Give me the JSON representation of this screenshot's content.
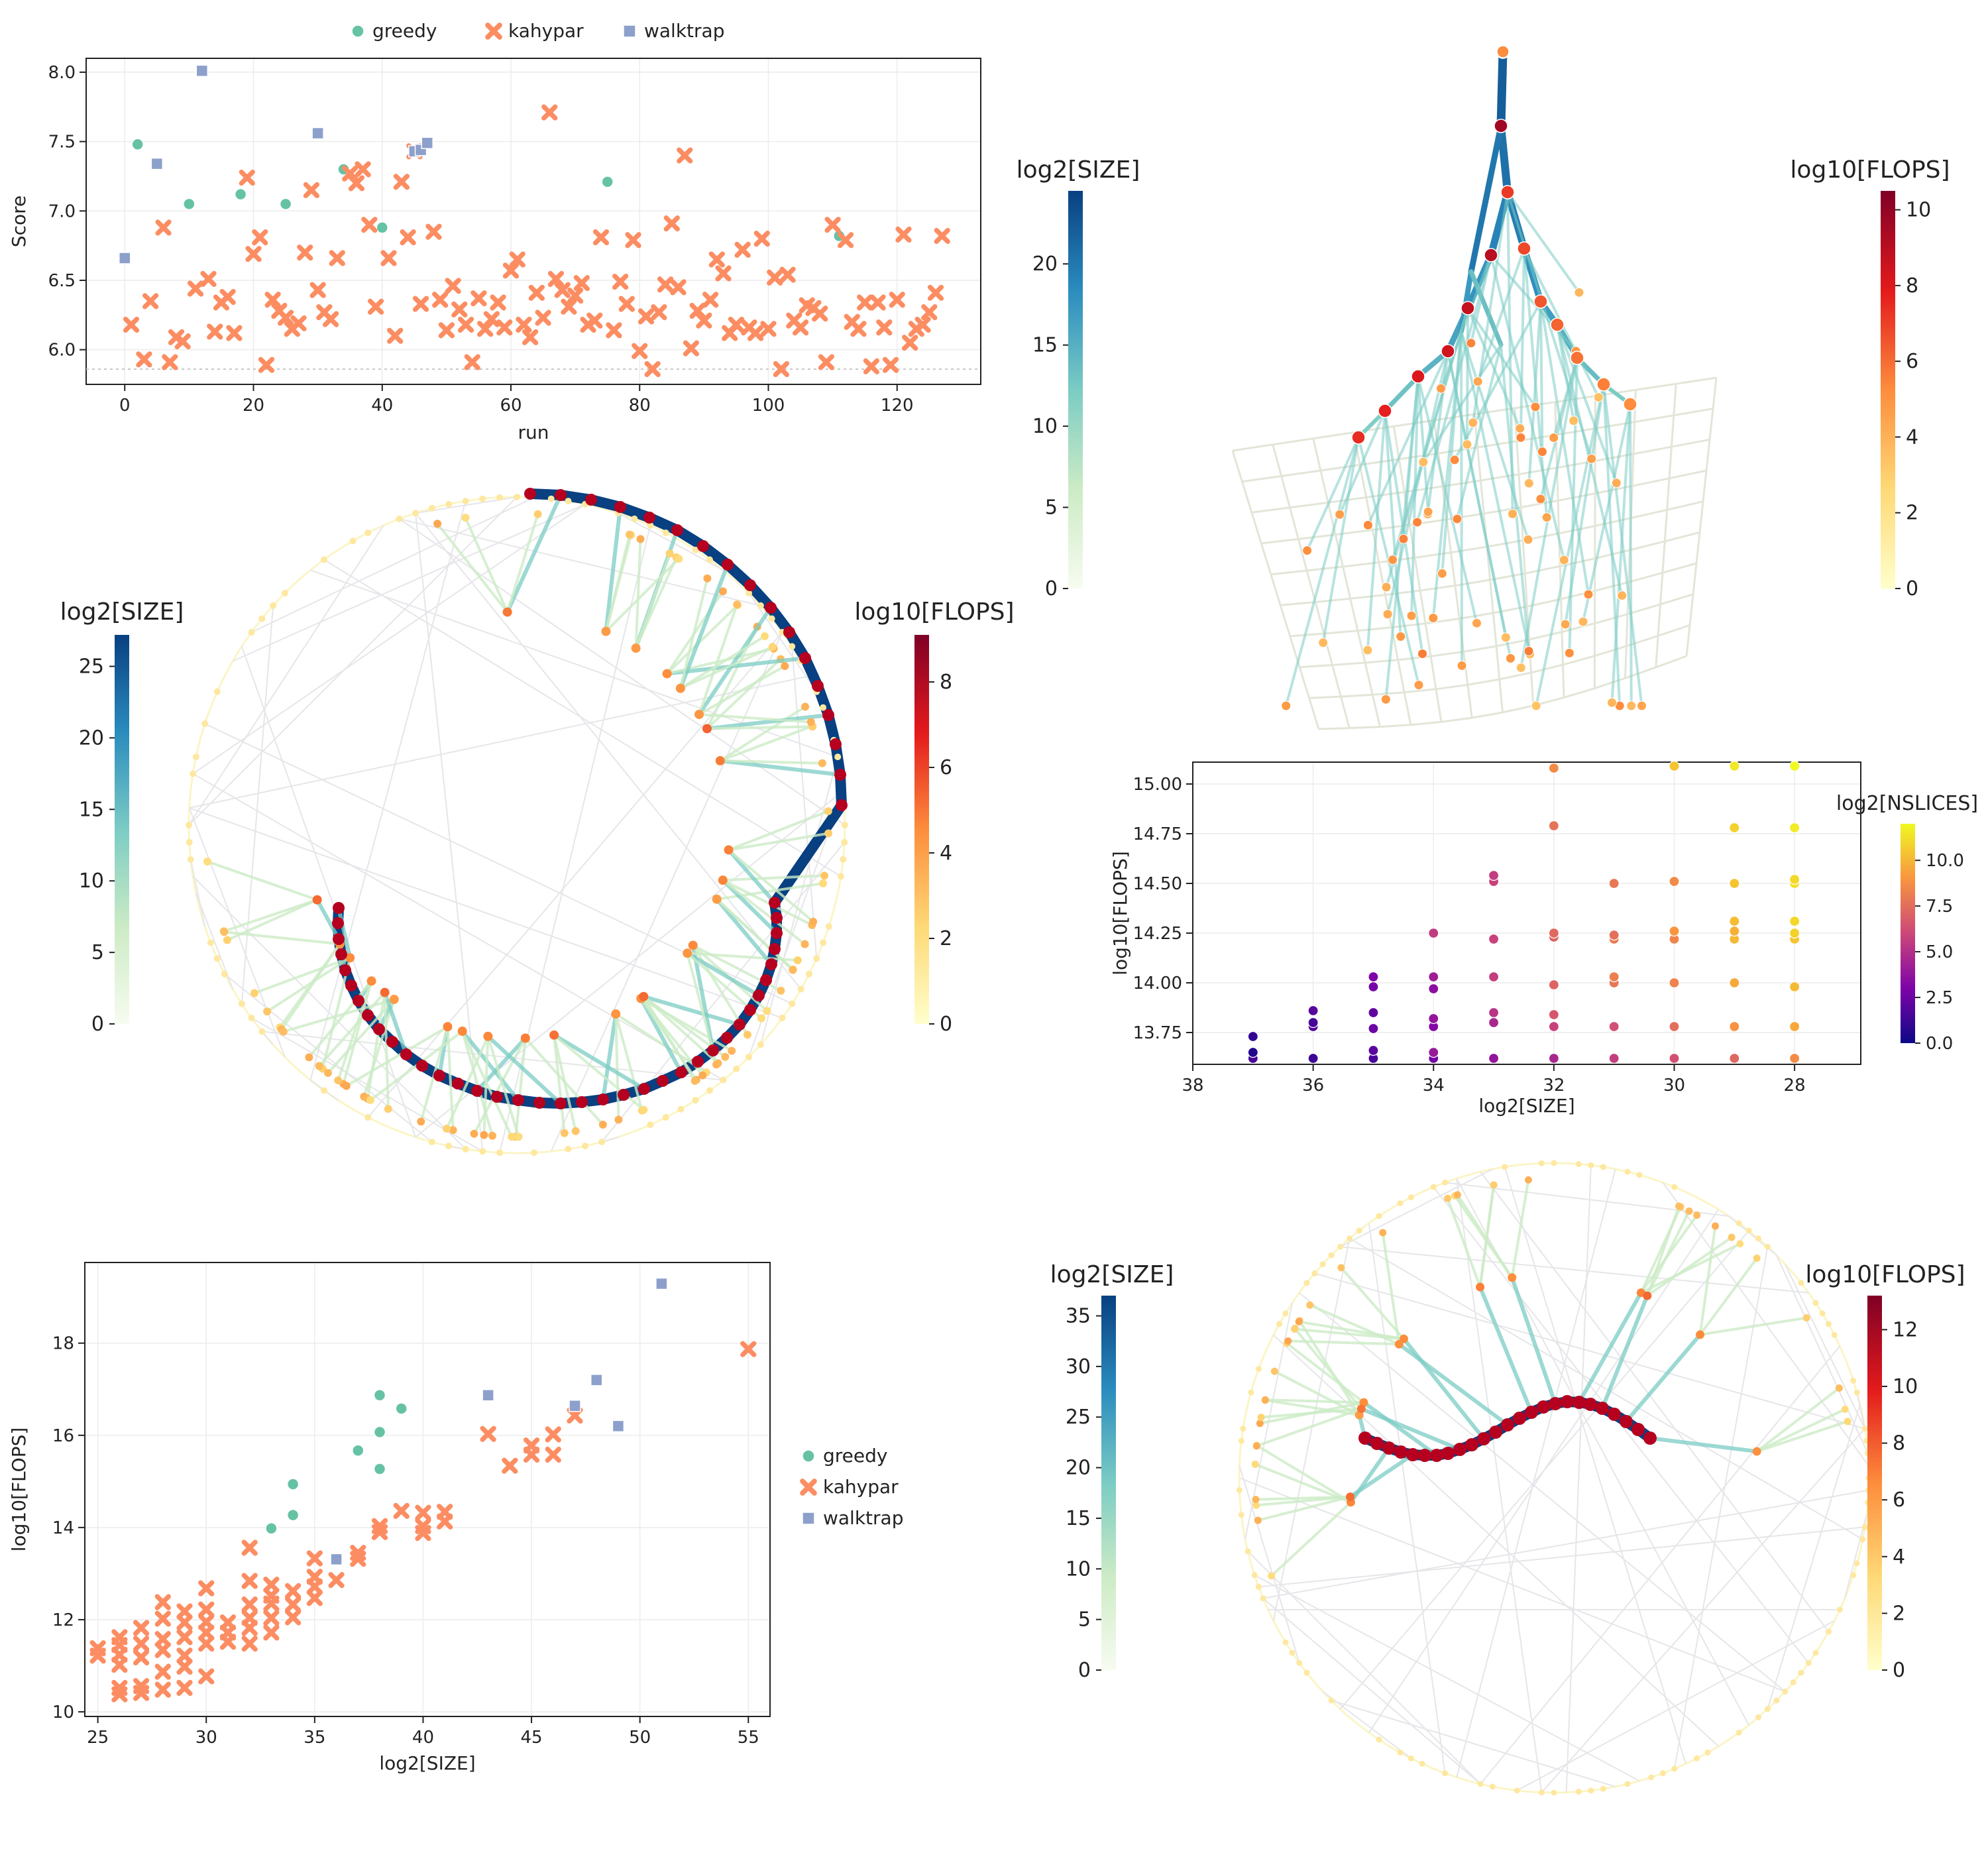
{
  "colors": {
    "greedy": "#66c2a5",
    "kahypar": "#fc8d62",
    "walktrap": "#8da0cb",
    "grid": "#ececec",
    "axis": "#222222"
  },
  "chart_data": [
    {
      "id": "score-vs-run",
      "type": "scatter",
      "title": "",
      "xlabel": "run",
      "ylabel": "Score",
      "xlim": [
        -6,
        133
      ],
      "ylim": [
        5.75,
        8.1
      ],
      "xticks": [
        0,
        20,
        40,
        60,
        80,
        100,
        120
      ],
      "yticks": [
        6.0,
        6.5,
        7.0,
        7.5,
        8.0
      ],
      "ytick_labels": [
        "6.0",
        "6.5",
        "7.0",
        "7.5",
        "8.0"
      ],
      "grid": true,
      "hline": 5.86,
      "legend": [
        "greedy",
        "kahypar",
        "walktrap"
      ],
      "legend_position": "top-center",
      "series": [
        {
          "name": "greedy",
          "marker": "circle",
          "x": [
            2,
            10,
            18,
            25,
            34,
            40,
            75,
            111
          ],
          "y": [
            7.48,
            7.05,
            7.12,
            7.05,
            7.3,
            6.88,
            7.21,
            6.82
          ]
        },
        {
          "name": "kahypar",
          "marker": "x",
          "x": [
            1,
            3,
            4,
            6,
            7,
            8,
            9,
            11,
            13,
            14,
            15,
            16,
            17,
            19,
            20,
            21,
            22,
            23,
            24,
            25,
            26,
            27,
            28,
            29,
            30,
            31,
            32,
            33,
            35,
            36,
            37,
            38,
            39,
            41,
            42,
            43,
            44,
            45,
            46,
            48,
            49,
            50,
            51,
            52,
            53,
            54,
            55,
            56,
            57,
            58,
            59,
            60,
            61,
            62,
            63,
            64,
            65,
            66,
            67,
            68,
            69,
            70,
            71,
            72,
            73,
            74,
            76,
            77,
            78,
            79,
            80,
            81,
            82,
            83,
            84,
            85,
            86,
            87,
            88,
            89,
            90,
            91,
            92,
            93,
            94,
            95,
            96,
            97,
            98,
            99,
            100,
            101,
            102,
            103,
            104,
            105,
            106,
            107,
            108,
            109,
            110,
            112,
            113,
            114,
            115,
            116,
            117,
            118,
            119,
            120,
            121,
            122,
            123,
            124,
            125,
            126,
            127
          ],
          "y": [
            6.18,
            5.93,
            6.35,
            6.88,
            5.91,
            6.09,
            6.06,
            6.44,
            6.51,
            6.13,
            6.34,
            6.38,
            6.12,
            7.24,
            6.69,
            6.81,
            5.89,
            6.36,
            6.28,
            6.23,
            6.15,
            6.19,
            6.7,
            7.15,
            6.43,
            6.27,
            6.22,
            6.66,
            7.27,
            7.2,
            7.3,
            6.9,
            6.31,
            6.66,
            6.1,
            7.21,
            6.81,
            7.43,
            6.33,
            6.85,
            6.36,
            6.14,
            6.46,
            6.29,
            6.18,
            5.91,
            6.37,
            6.15,
            6.22,
            6.34,
            6.16,
            6.57,
            6.65,
            6.18,
            6.09,
            6.41,
            6.23,
            7.71,
            6.51,
            6.43,
            6.31,
            6.39,
            6.48,
            6.18,
            6.21,
            6.81,
            6.14,
            6.49,
            6.33,
            6.79,
            5.99,
            6.24,
            5.86,
            6.27,
            6.47,
            6.91,
            6.45,
            7.4,
            6.01,
            6.28,
            6.21,
            6.36,
            6.65,
            6.55,
            6.12,
            6.18,
            6.72,
            6.16,
            6.12,
            6.8,
            6.15,
            6.52,
            5.86,
            6.54,
            6.21,
            6.16,
            6.32,
            6.3,
            6.26,
            5.91,
            6.9,
            6.79,
            6.2,
            6.15,
            6.34,
            5.88,
            6.34,
            6.16,
            5.89,
            6.36,
            6.83,
            6.05,
            6.15,
            6.18,
            6.27,
            6.41,
            6.82
          ]
        },
        {
          "name": "walktrap",
          "marker": "square",
          "x": [
            0,
            5,
            12,
            30,
            45,
            46,
            47
          ],
          "y": [
            6.66,
            7.34,
            8.01,
            7.56,
            7.43,
            7.44,
            7.49
          ]
        }
      ]
    },
    {
      "id": "flops-vs-size",
      "type": "scatter",
      "title": "",
      "xlabel": "log2[SIZE]",
      "ylabel": "log10[FLOPS]",
      "xlim": [
        24.4,
        56.0
      ],
      "ylim": [
        9.9,
        19.75
      ],
      "xticks": [
        25,
        30,
        35,
        40,
        45,
        50,
        55
      ],
      "yticks": [
        10,
        12,
        14,
        16,
        18
      ],
      "grid": true,
      "legend": [
        "greedy",
        "kahypar",
        "walktrap"
      ],
      "legend_position": "right",
      "series": [
        {
          "name": "greedy",
          "marker": "circle",
          "x": [
            33,
            34,
            34,
            37,
            38,
            38,
            38,
            39
          ],
          "y": [
            13.98,
            14.27,
            14.94,
            15.67,
            15.27,
            16.07,
            16.87,
            16.58
          ]
        },
        {
          "name": "kahypar",
          "marker": "x",
          "x": [
            25,
            25,
            26,
            26,
            26,
            26,
            26,
            26,
            27,
            27,
            27,
            27,
            27,
            28,
            28,
            28,
            28,
            28,
            28,
            29,
            29,
            29,
            29,
            29,
            29,
            30,
            30,
            30,
            30,
            30,
            30,
            31,
            31,
            31,
            32,
            32,
            32,
            32,
            32,
            32,
            33,
            33,
            33,
            33,
            33,
            34,
            34,
            34,
            35,
            35,
            35,
            35,
            36,
            37,
            37,
            38,
            38,
            39,
            40,
            40,
            40,
            41,
            41,
            43,
            44,
            45,
            45,
            46,
            46,
            47,
            55
          ],
          "y": [
            11.22,
            11.38,
            10.38,
            10.52,
            11.02,
            11.24,
            11.45,
            11.62,
            10.41,
            10.56,
            11.18,
            11.48,
            11.82,
            10.48,
            10.87,
            11.34,
            11.58,
            12.02,
            12.38,
            10.52,
            10.98,
            11.22,
            11.62,
            11.94,
            12.18,
            10.77,
            11.48,
            11.72,
            11.95,
            12.22,
            12.68,
            11.52,
            11.72,
            11.94,
            11.48,
            11.82,
            12.04,
            12.33,
            12.84,
            13.56,
            11.72,
            12.04,
            12.35,
            12.52,
            12.76,
            12.05,
            12.33,
            12.62,
            12.47,
            12.72,
            12.93,
            13.33,
            12.86,
            13.32,
            13.45,
            13.9,
            14.03,
            14.36,
            13.88,
            14.03,
            14.32,
            14.13,
            14.34,
            16.03,
            15.34,
            15.58,
            15.78,
            15.58,
            16.02,
            16.43,
            17.87
          ]
        },
        {
          "name": "walktrap",
          "marker": "square",
          "x": [
            36,
            43,
            47,
            48,
            49,
            51
          ],
          "y": [
            13.31,
            16.87,
            16.64,
            17.2,
            16.2,
            19.29
          ]
        }
      ]
    },
    {
      "id": "slices-scatter",
      "type": "scatter",
      "title": "",
      "xlabel": "log2[SIZE]",
      "ylabel": "log10[FLOPS]",
      "xlim": [
        38,
        26.9
      ],
      "x_reversed": true,
      "ylim": [
        13.59,
        15.11
      ],
      "xticks": [
        38,
        36,
        34,
        32,
        30,
        28
      ],
      "yticks": [
        13.75,
        14.0,
        14.25,
        14.5,
        14.75,
        15.0
      ],
      "ytick_labels": [
        "13.75",
        "14.00",
        "14.25",
        "14.50",
        "14.75",
        "15.00"
      ],
      "grid": true,
      "colorbar": {
        "label": "log2[NSLICES]",
        "min": 0,
        "max": 12,
        "ticks": [
          0,
          2.5,
          5,
          7.5,
          10
        ],
        "tick_labels": [
          "0.0",
          "2.5",
          "5.0",
          "7.5",
          "10.0"
        ],
        "colormap": "plasma"
      },
      "points": {
        "x": [
          37,
          37,
          37,
          36,
          36,
          36,
          36,
          35,
          35,
          35,
          35,
          35,
          35,
          34,
          34,
          34,
          34,
          34,
          34,
          34,
          33,
          33,
          33,
          33,
          33,
          33,
          33,
          32,
          32,
          32,
          32,
          32,
          32,
          32,
          32,
          31,
          31,
          31,
          31,
          31,
          31,
          31,
          30,
          30,
          30,
          30,
          30,
          30,
          30,
          29,
          29,
          29,
          29,
          29,
          29,
          29,
          29,
          29,
          28,
          28,
          28,
          28,
          28,
          28,
          28,
          28,
          28,
          28
        ],
        "y": [
          13.62,
          13.65,
          13.73,
          13.62,
          13.78,
          13.8,
          13.86,
          13.62,
          13.66,
          13.77,
          13.85,
          13.98,
          14.03,
          13.62,
          13.78,
          13.82,
          13.97,
          14.03,
          13.65,
          14.25,
          13.62,
          13.8,
          13.85,
          14.03,
          14.22,
          14.51,
          14.54,
          13.62,
          13.78,
          13.84,
          13.99,
          14.23,
          14.25,
          14.79,
          15.08,
          13.62,
          13.78,
          14.0,
          14.03,
          14.22,
          14.24,
          14.5,
          13.62,
          13.78,
          14.0,
          14.22,
          14.26,
          14.51,
          15.09,
          13.62,
          13.78,
          14.0,
          14.22,
          14.26,
          14.31,
          14.5,
          14.78,
          15.09,
          13.62,
          13.78,
          13.98,
          14.22,
          14.25,
          14.31,
          14.5,
          14.52,
          14.78,
          15.09
        ],
        "nslices": [
          1.5,
          0.5,
          1.0,
          1.3,
          1.8,
          1.5,
          2.0,
          1.6,
          2.1,
          2.5,
          2.2,
          2.8,
          3.0,
          2.8,
          3.2,
          3.8,
          3.5,
          4.2,
          4.0,
          5.5,
          3.8,
          4.6,
          5.2,
          5.6,
          5.8,
          5.8,
          5.6,
          4.6,
          5.8,
          6.6,
          7.1,
          7.1,
          7.3,
          7.7,
          8.6,
          5.6,
          6.3,
          7.8,
          8.2,
          8.0,
          7.6,
          7.9,
          6.4,
          7.5,
          8.3,
          8.4,
          9.0,
          8.6,
          10.4,
          7.3,
          8.9,
          9.6,
          10.1,
          9.8,
          10.2,
          10.4,
          10.8,
          11.5,
          8.6,
          9.6,
          10.1,
          10.4,
          10.8,
          11.0,
          11.2,
          11.0,
          11.6,
          12.0
        ]
      }
    },
    {
      "id": "tree-3d",
      "type": "tree",
      "colorbars": [
        {
          "label": "log2[SIZE]",
          "min": 0,
          "max": 24.5,
          "ticks": [
            0,
            5,
            10,
            15,
            20
          ],
          "colormap": "size"
        },
        {
          "label": "log10[FLOPS]",
          "min": 0,
          "max": 10.5,
          "ticks": [
            0,
            2,
            4,
            6,
            8,
            10
          ],
          "colormap": "flops"
        }
      ]
    },
    {
      "id": "tree-circle-1",
      "type": "tree",
      "colorbars": [
        {
          "label": "log2[SIZE]",
          "min": 0,
          "max": 27.2,
          "ticks": [
            0,
            5,
            10,
            15,
            20,
            25
          ],
          "colormap": "size"
        },
        {
          "label": "log10[FLOPS]",
          "min": 0,
          "max": 9.1,
          "ticks": [
            0,
            2,
            4,
            6,
            8
          ],
          "colormap": "flops"
        }
      ]
    },
    {
      "id": "tree-circle-2",
      "type": "tree",
      "colorbars": [
        {
          "label": "log2[SIZE]",
          "min": 0,
          "max": 37,
          "ticks": [
            0,
            5,
            10,
            15,
            20,
            25,
            30,
            35
          ],
          "colormap": "size"
        },
        {
          "label": "log10[FLOPS]",
          "min": 0,
          "max": 13.2,
          "ticks": [
            0,
            2,
            4,
            6,
            8,
            10,
            12
          ],
          "colormap": "flops"
        }
      ]
    }
  ]
}
